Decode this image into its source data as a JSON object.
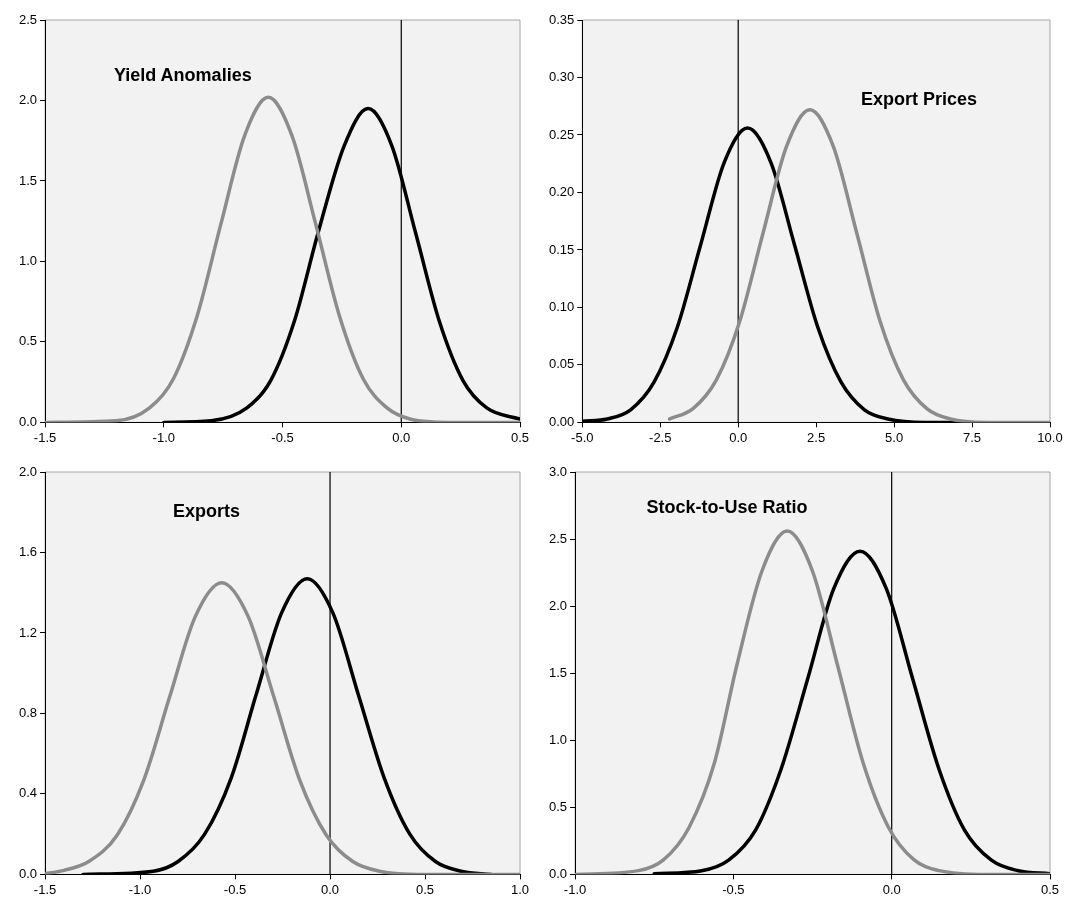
{
  "chart_data": [
    {
      "type": "line",
      "title": "Yield Anomalies",
      "xlim": [
        -1.5,
        0.5
      ],
      "ylim": [
        0,
        2.5
      ],
      "xticks": [
        {
          "value": -1.5,
          "label": "-1.5"
        },
        {
          "value": -1,
          "label": "-1.0"
        },
        {
          "value": -0.5,
          "label": "-0.5"
        },
        {
          "value": 0,
          "label": "0.0"
        },
        {
          "value": 0.5,
          "label": "0.5"
        }
      ],
      "yticks": [
        {
          "value": 0,
          "label": "0.0"
        },
        {
          "value": 0.5,
          "label": "0.5"
        },
        {
          "value": 1,
          "label": "1.0"
        },
        {
          "value": 1.5,
          "label": "1.5"
        },
        {
          "value": 2,
          "label": "2.0"
        },
        {
          "value": 2.5,
          "label": "2.5"
        }
      ],
      "ref_lines": [
        {
          "axis": "x",
          "value": 0,
          "color": "#000000"
        }
      ],
      "series": [
        {
          "color": "#8c8c8c",
          "x": [
            -1.5,
            -1.2,
            -1.06,
            -0.96,
            -0.86,
            -0.76,
            -0.66,
            -0.56,
            -0.46,
            -0.36,
            -0.26,
            -0.16,
            -0.06,
            0.04,
            0.2,
            0.5
          ],
          "values": [
            0,
            0.01,
            0.09,
            0.27,
            0.66,
            1.23,
            1.78,
            2.02,
            1.78,
            1.23,
            0.66,
            0.27,
            0.09,
            0.02,
            0,
            0
          ]
        },
        {
          "color": "#000000",
          "x": [
            -1,
            -0.8,
            -0.65,
            -0.55,
            -0.45,
            -0.35,
            -0.24,
            -0.14,
            -0.04,
            0.06,
            0.16,
            0.26,
            0.36,
            0.5
          ],
          "values": [
            0,
            0.01,
            0.09,
            0.26,
            0.63,
            1.18,
            1.72,
            1.95,
            1.72,
            1.18,
            0.63,
            0.26,
            0.09,
            0.02
          ]
        }
      ]
    },
    {
      "type": "line",
      "title": "Export Prices",
      "xlim": [
        -5,
        10
      ],
      "ylim": [
        0,
        0.35
      ],
      "xticks": [
        {
          "value": -5,
          "label": "-5.0"
        },
        {
          "value": -2.5,
          "label": "-2.5"
        },
        {
          "value": 0,
          "label": "0.0"
        },
        {
          "value": 2.5,
          "label": "2.5"
        },
        {
          "value": 5,
          "label": "5.0"
        },
        {
          "value": 7.5,
          "label": "7.5"
        },
        {
          "value": 10,
          "label": "10.0"
        }
      ],
      "yticks": [
        {
          "value": 0,
          "label": "0.00"
        },
        {
          "value": 0.05,
          "label": "0.05"
        },
        {
          "value": 0.1,
          "label": "0.10"
        },
        {
          "value": 0.15,
          "label": "0.15"
        },
        {
          "value": 0.2,
          "label": "0.20"
        },
        {
          "value": 0.25,
          "label": "0.25"
        },
        {
          "value": 0.3,
          "label": "0.30"
        },
        {
          "value": 0.35,
          "label": "0.35"
        }
      ],
      "ref_lines": [
        {
          "axis": "x",
          "value": 0,
          "color": "#000000"
        }
      ],
      "series": [
        {
          "color": "#8c8c8c",
          "x": [
            -2.2,
            -1.45,
            -0.7,
            0.05,
            0.8,
            1.55,
            2.3,
            3.05,
            3.8,
            4.55,
            5.3,
            6.05,
            6.8,
            8,
            10
          ],
          "values": [
            0.003,
            0.012,
            0.037,
            0.088,
            0.165,
            0.24,
            0.272,
            0.24,
            0.165,
            0.088,
            0.037,
            0.012,
            0.003,
            0,
            0
          ]
        },
        {
          "color": "#000000",
          "x": [
            -5,
            -4.2,
            -3.45,
            -2.7,
            -1.95,
            -1.2,
            -0.45,
            0.3,
            1.05,
            1.8,
            2.55,
            3.3,
            4.05,
            4.8,
            6,
            7
          ],
          "values": [
            0.001,
            0.003,
            0.011,
            0.035,
            0.083,
            0.155,
            0.226,
            0.256,
            0.226,
            0.155,
            0.083,
            0.035,
            0.011,
            0.003,
            0,
            0
          ]
        }
      ]
    },
    {
      "type": "line",
      "title": "Exports",
      "xlim": [
        -1.5,
        1
      ],
      "ylim": [
        0,
        2
      ],
      "xticks": [
        {
          "value": -1.5,
          "label": "-1.5"
        },
        {
          "value": -1,
          "label": "-1.0"
        },
        {
          "value": -0.5,
          "label": "-0.5"
        },
        {
          "value": 0,
          "label": "0.0"
        },
        {
          "value": 0.5,
          "label": "0.5"
        },
        {
          "value": 1,
          "label": "1.0"
        }
      ],
      "yticks": [
        {
          "value": 0,
          "label": "0.0"
        },
        {
          "value": 0.4,
          "label": "0.4"
        },
        {
          "value": 0.8,
          "label": "0.8"
        },
        {
          "value": 1.2,
          "label": "1.2"
        },
        {
          "value": 1.6,
          "label": "1.6"
        },
        {
          "value": 2,
          "label": "2.0"
        }
      ],
      "ref_lines": [
        {
          "axis": "x",
          "value": 0,
          "color": "#000000"
        }
      ],
      "series": [
        {
          "color": "#8c8c8c",
          "x": [
            -1.5,
            -1.4,
            -1.27,
            -1.12,
            -0.98,
            -0.845,
            -0.71,
            -0.57,
            -0.43,
            -0.295,
            -0.16,
            -0.02,
            0.12,
            0.26,
            0.5,
            1
          ],
          "values": [
            0.004,
            0.02,
            0.064,
            0.196,
            0.47,
            0.88,
            1.28,
            1.45,
            1.28,
            0.88,
            0.47,
            0.196,
            0.064,
            0.016,
            0,
            0
          ]
        },
        {
          "color": "#000000",
          "x": [
            -1.3,
            -0.93,
            -0.8,
            -0.66,
            -0.52,
            -0.39,
            -0.255,
            -0.12,
            0.015,
            0.15,
            0.285,
            0.42,
            0.555,
            0.69,
            0.85
          ],
          "values": [
            0,
            0.016,
            0.064,
            0.2,
            0.48,
            0.89,
            1.3,
            1.47,
            1.3,
            0.89,
            0.48,
            0.2,
            0.064,
            0.016,
            0
          ]
        }
      ]
    },
    {
      "type": "line",
      "title": "Stock-to-Use Ratio",
      "xlim": [
        -1,
        0.5
      ],
      "ylim": [
        0,
        3
      ],
      "xticks": [
        {
          "value": -1,
          "label": "-1.0"
        },
        {
          "value": -0.5,
          "label": "-0.5"
        },
        {
          "value": 0,
          "label": "0.0"
        },
        {
          "value": 0.5,
          "label": "0.5"
        }
      ],
      "yticks": [
        {
          "value": 0,
          "label": "0.0"
        },
        {
          "value": 0.5,
          "label": "0.5"
        },
        {
          "value": 1,
          "label": "1.0"
        },
        {
          "value": 1.5,
          "label": "1.5"
        },
        {
          "value": 2,
          "label": "2.0"
        },
        {
          "value": 2.5,
          "label": "2.5"
        },
        {
          "value": 3,
          "label": "3.0"
        }
      ],
      "ref_lines": [
        {
          "axis": "x",
          "value": 0,
          "color": "#000000"
        }
      ],
      "series": [
        {
          "color": "#8c8c8c",
          "x": [
            -1,
            -0.8,
            -0.72,
            -0.64,
            -0.56,
            -0.49,
            -0.41,
            -0.33,
            -0.25,
            -0.17,
            -0.09,
            -0.01,
            0.07,
            0.15,
            0.3,
            0.5
          ],
          "values": [
            0,
            0.028,
            0.11,
            0.35,
            0.83,
            1.55,
            2.26,
            2.56,
            2.26,
            1.55,
            0.83,
            0.35,
            0.11,
            0.028,
            0,
            0
          ]
        },
        {
          "color": "#000000",
          "x": [
            -0.75,
            -0.6,
            -0.515,
            -0.43,
            -0.35,
            -0.265,
            -0.183,
            -0.1,
            -0.017,
            0.066,
            0.15,
            0.23,
            0.315,
            0.4,
            0.5
          ],
          "values": [
            0.005,
            0.027,
            0.106,
            0.33,
            0.78,
            1.46,
            2.13,
            2.41,
            2.13,
            1.46,
            0.78,
            0.33,
            0.106,
            0.027,
            0.005
          ]
        }
      ]
    }
  ]
}
